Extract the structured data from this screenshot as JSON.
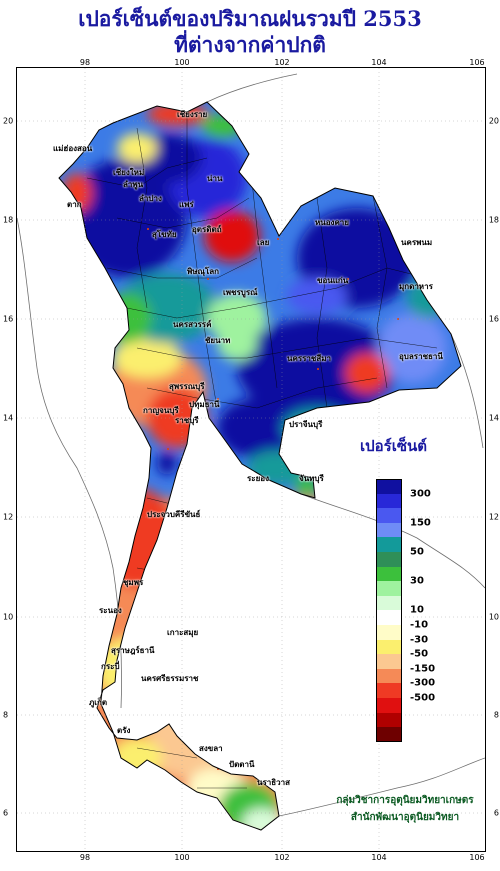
{
  "title": {
    "line1": "เปอร์เซ็นต์ของปริมาณฝนรวมปี 2553",
    "line2": "ที่ต่างจากค่าปกติ"
  },
  "axes": {
    "longitude_ticks": [
      "98",
      "100",
      "102",
      "104",
      "106"
    ],
    "latitude_ticks": [
      "20",
      "18",
      "16",
      "14",
      "12",
      "10",
      "8",
      "6"
    ]
  },
  "legend": {
    "title": "เปอร์เซ็นต์",
    "classes": [
      {
        "color": "#1010a0"
      },
      {
        "color": "#2828d8"
      },
      {
        "color": "#4a58f0"
      },
      {
        "color": "#6f8cf6"
      },
      {
        "color": "#139a9a"
      },
      {
        "color": "#2f8f58"
      },
      {
        "color": "#3cc03c"
      },
      {
        "color": "#9ff29f"
      },
      {
        "color": "#d9fbd9"
      },
      {
        "color": "#ffffff"
      },
      {
        "color": "#fffcc8"
      },
      {
        "color": "#fbef6e"
      },
      {
        "color": "#fbc891"
      },
      {
        "color": "#f58a57"
      },
      {
        "color": "#ef3a24"
      },
      {
        "color": "#e01010"
      },
      {
        "color": "#b00000"
      },
      {
        "color": "#6e0000"
      }
    ],
    "labels": [
      "300",
      "150",
      "50",
      "30",
      "10",
      "-10",
      "-30",
      "-50",
      "-150",
      "-300",
      "-500"
    ]
  },
  "places": [
    "เชียงราย",
    "เชียงใหม่",
    "แม่ฮ่องสอน",
    "ลำพูน",
    "น่าน",
    "แพร่",
    "ลำปาง",
    "ตาก",
    "อุตรดิตถ์",
    "สุโขทัย",
    "พิษณุโลก",
    "เลย",
    "หนองคาย",
    "นครพนม",
    "มุกดาหาร",
    "เพชรบูรณ์",
    "ขอนแก่น",
    "นครสวรรค์",
    "ชัยนาท",
    "สุพรรณบุรี",
    "กาญจนบุรี",
    "ปทุมธานี",
    "ราชบุรี",
    "นครราชสีมา",
    "อุบลราชธานี",
    "ปราจีนบุรี",
    "ระยอง",
    "จันทบุรี",
    "ประจวบคีรีขันธ์",
    "ชุมพร",
    "ระนอง",
    "สุราษฎร์ธานี",
    "เกาะสมุย",
    "ภูเก็ต",
    "นครศรีธรรมราช",
    "กระบี่",
    "ตรัง",
    "สงขลา",
    "ปัตตานี",
    "นราธิวาส"
  ],
  "credit": {
    "line1": "กลุ่มวิชาการอุตุนิยมวิทยาเกษตร",
    "line2": "สำนักพัฒนาอุตุนิยมวิทยา"
  }
}
